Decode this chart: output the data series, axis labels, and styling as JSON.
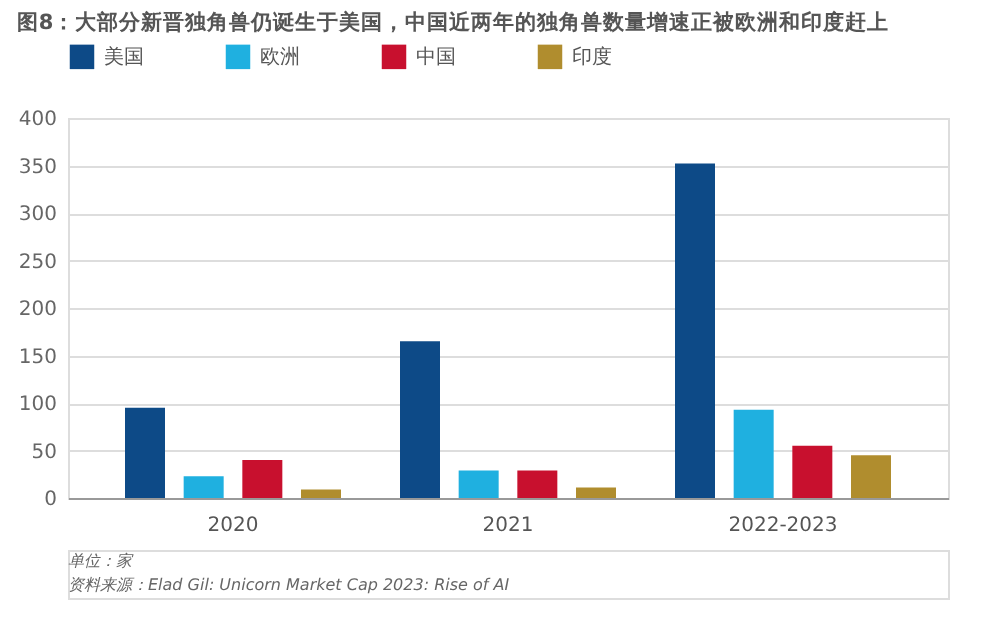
{
  "chart_data": {
    "type": "bar",
    "title": "图8：大部分新晋独角兽仍诞生于美国，中国近两年的独角兽数量增速正被欧洲和印度赶上",
    "categories": [
      "2020",
      "2021",
      "2022-2023"
    ],
    "series": [
      {
        "name": "美国",
        "color": "#0d4a87",
        "values": [
          95,
          165,
          352
        ]
      },
      {
        "name": "欧洲",
        "color": "#1fb0e0",
        "values": [
          23,
          29,
          93
        ]
      },
      {
        "name": "中国",
        "color": "#c8102e",
        "values": [
          40,
          29,
          55
        ]
      },
      {
        "name": "印度",
        "color": "#b08d2e",
        "values": [
          9,
          11,
          45
        ]
      }
    ],
    "ylim": [
      0,
      400
    ],
    "yticks": [
      0,
      50,
      100,
      150,
      200,
      250,
      300,
      350,
      400
    ],
    "grid": "y",
    "legend": "top",
    "annotations": [
      "单位：家",
      "资料来源：Elad Gil: Unicorn Market Cap 2023: Rise of AI"
    ]
  }
}
